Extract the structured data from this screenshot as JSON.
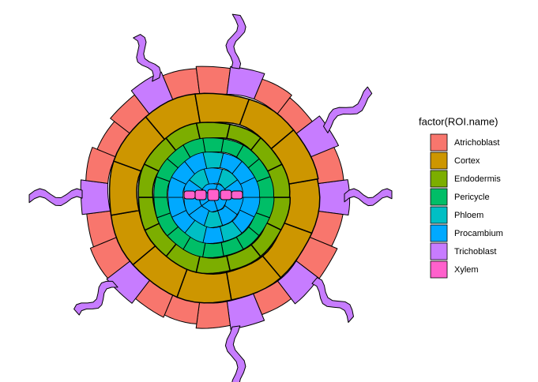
{
  "legend": {
    "title": "factor(ROI.name)",
    "entries": [
      {
        "label": "Atrichoblast",
        "color": "#F8766D"
      },
      {
        "label": "Cortex",
        "color": "#CD9600"
      },
      {
        "label": "Endodermis",
        "color": "#7CAE00"
      },
      {
        "label": "Pericycle",
        "color": "#00BE67"
      },
      {
        "label": "Phloem",
        "color": "#00BFC4"
      },
      {
        "label": "Procambium",
        "color": "#00A9FF"
      },
      {
        "label": "Trichoblast",
        "color": "#C77CFF"
      },
      {
        "label": "Xylem",
        "color": "#FF61CC"
      }
    ]
  }
}
